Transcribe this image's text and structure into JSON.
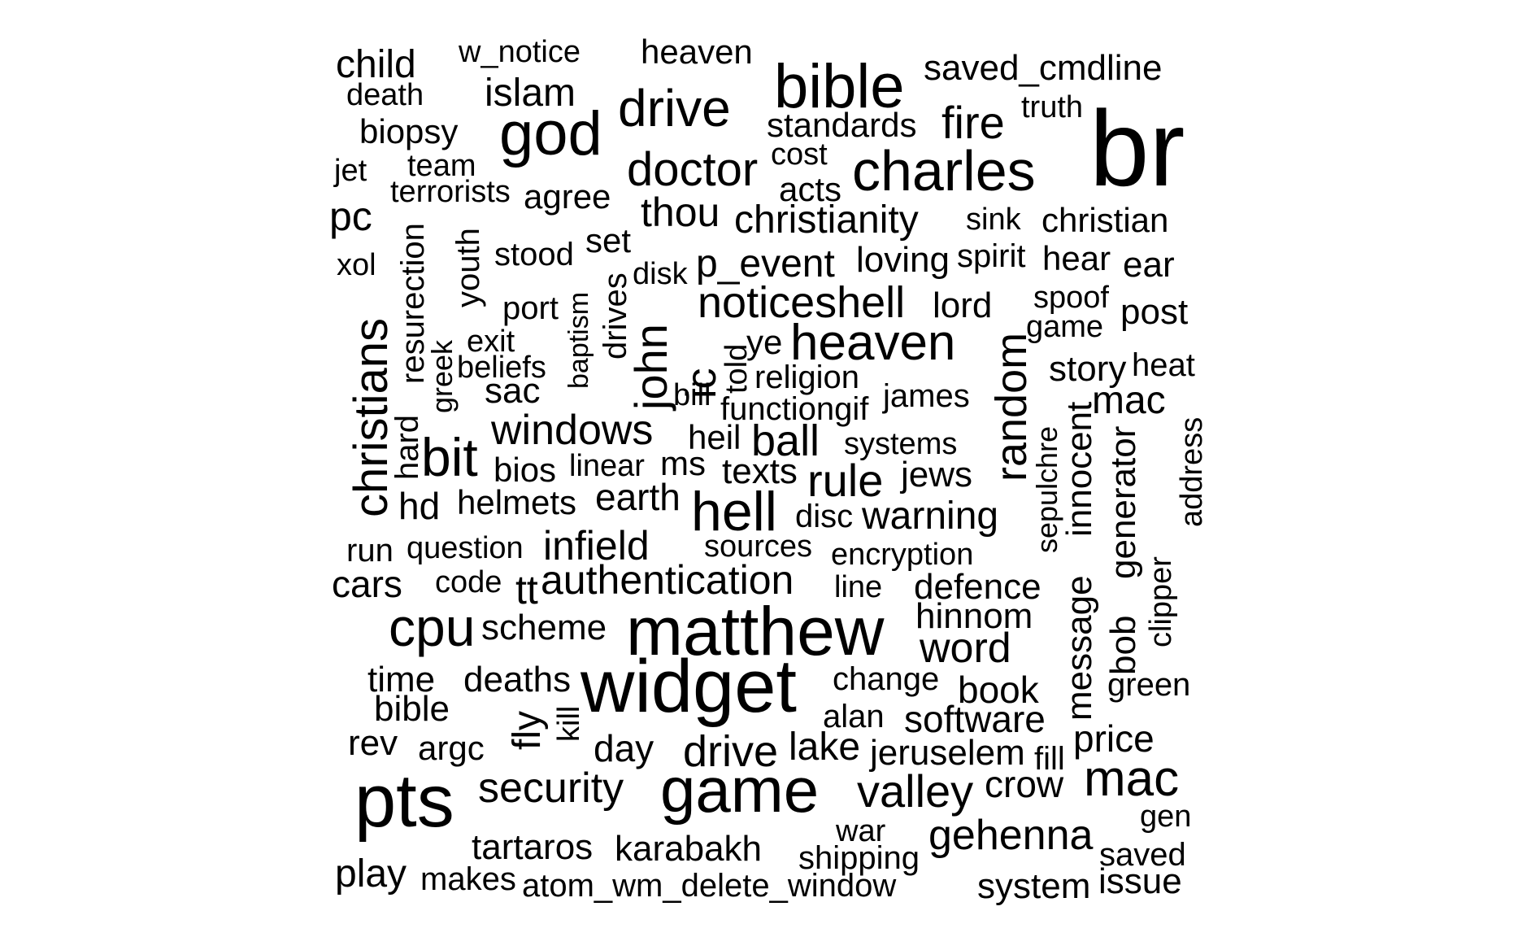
{
  "word_cloud": {
    "text_color": "#000000",
    "background_color": "#ffffff",
    "words": [
      "br",
      "charles",
      "bible",
      "drive",
      "god",
      "islam",
      "heaven",
      "child",
      "w_notice",
      "death",
      "saved_cmdline",
      "fire",
      "truth",
      "standards",
      "biopsy",
      "team",
      "jet",
      "cost",
      "doctor",
      "acts",
      "terrorists",
      "agree",
      "thou",
      "christianity",
      "sink",
      "christian",
      "pc",
      "xol",
      "stood",
      "set",
      "disk",
      "p_event",
      "loving",
      "spirit",
      "hear",
      "ear",
      "resurection",
      "youth",
      "port",
      "baptism",
      "drives",
      "john",
      "noticeshell",
      "lord",
      "spoof",
      "post",
      "game",
      "christians",
      "exit",
      "greek",
      "beliefs",
      "ic",
      "told",
      "ye",
      "heaven",
      "random",
      "story",
      "heat",
      "sac",
      "bill",
      "religion",
      "functiongif",
      "james",
      "mac",
      "hard",
      "windows",
      "heil",
      "ball",
      "systems",
      "sepulchre",
      "innocent",
      "address",
      "bit",
      "bios",
      "linear",
      "ms",
      "texts",
      "rule",
      "jews",
      "hd",
      "helmets",
      "earth",
      "hell",
      "disc",
      "warning",
      "generator",
      "run",
      "question",
      "infield",
      "sources",
      "encryption",
      "clipper",
      "cars",
      "code",
      "tt",
      "authentication",
      "line",
      "defence",
      "message",
      "bob",
      "cpu",
      "scheme",
      "matthew",
      "hinnom",
      "word",
      "time",
      "deaths",
      "widget",
      "change",
      "book",
      "bible",
      "green",
      "kill",
      "fly",
      "alan",
      "software",
      "rev",
      "argc",
      "day",
      "drive",
      "lake",
      "jeruselem",
      "fill",
      "price",
      "pts",
      "security",
      "game",
      "valley",
      "crow",
      "mac",
      "gen",
      "war",
      "gehenna",
      "tartaros",
      "karabakh",
      "shipping",
      "saved",
      "play",
      "makes",
      "atom_wm_delete_window",
      "system",
      "issue"
    ]
  }
}
